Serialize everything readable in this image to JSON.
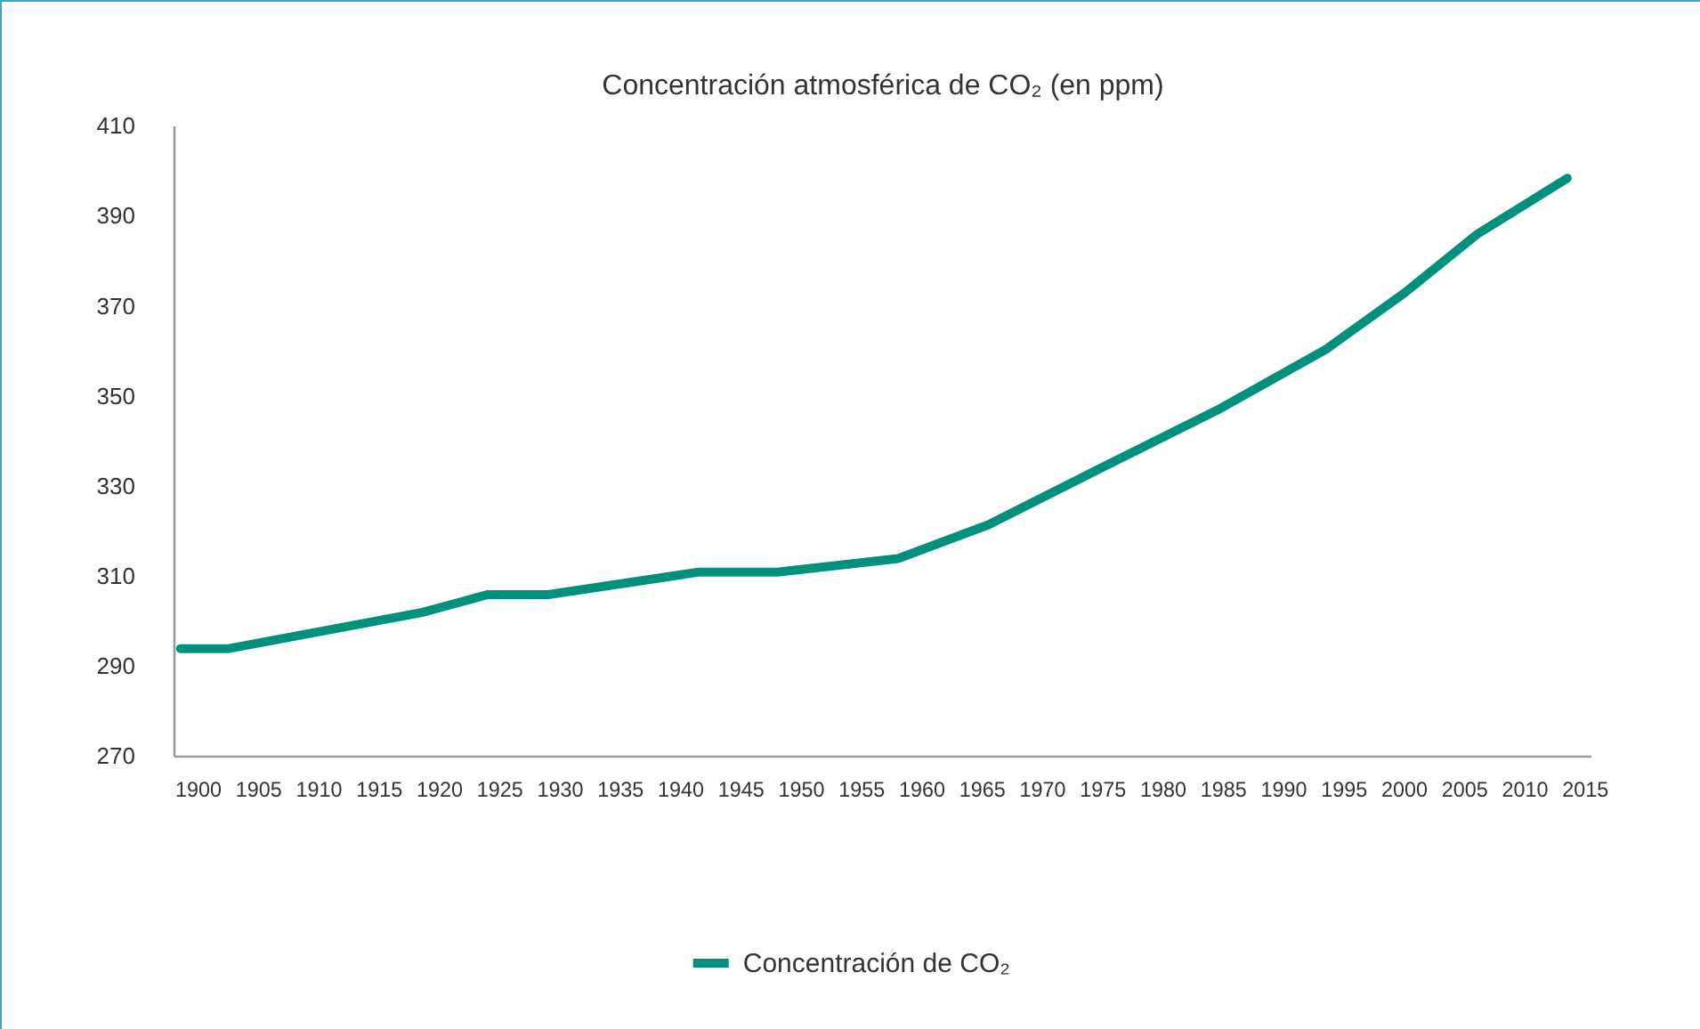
{
  "chart_data": {
    "type": "line",
    "title": "Concentración atmosférica de CO₂ (en ppm)",
    "x": [
      1898.5,
      1902.5,
      1918.5,
      1924,
      1929,
      1941.5,
      1948,
      1958,
      1965.5,
      1975.5,
      1984.5,
      1993.5,
      2000,
      2006,
      2013.5
    ],
    "series": [
      {
        "name": "Concentración de CO₂",
        "color": "#00917c",
        "values": [
          294,
          294,
          302,
          306,
          306,
          311,
          311,
          314,
          321.5,
          335,
          347,
          360.5,
          373,
          386,
          398.5
        ]
      }
    ],
    "xlim": [
      1898,
      2015.5
    ],
    "xticks": [
      1900,
      1905,
      1910,
      1915,
      1920,
      1925,
      1930,
      1935,
      1940,
      1945,
      1950,
      1955,
      1960,
      1965,
      1970,
      1975,
      1980,
      1985,
      1990,
      1995,
      2000,
      2005,
      2010,
      2015
    ],
    "ylim": [
      270,
      410
    ],
    "yticks": [
      270,
      290,
      310,
      330,
      350,
      370,
      390,
      410
    ],
    "grid": false,
    "legend": "bottom",
    "marker": "none",
    "line_style": "solid"
  }
}
